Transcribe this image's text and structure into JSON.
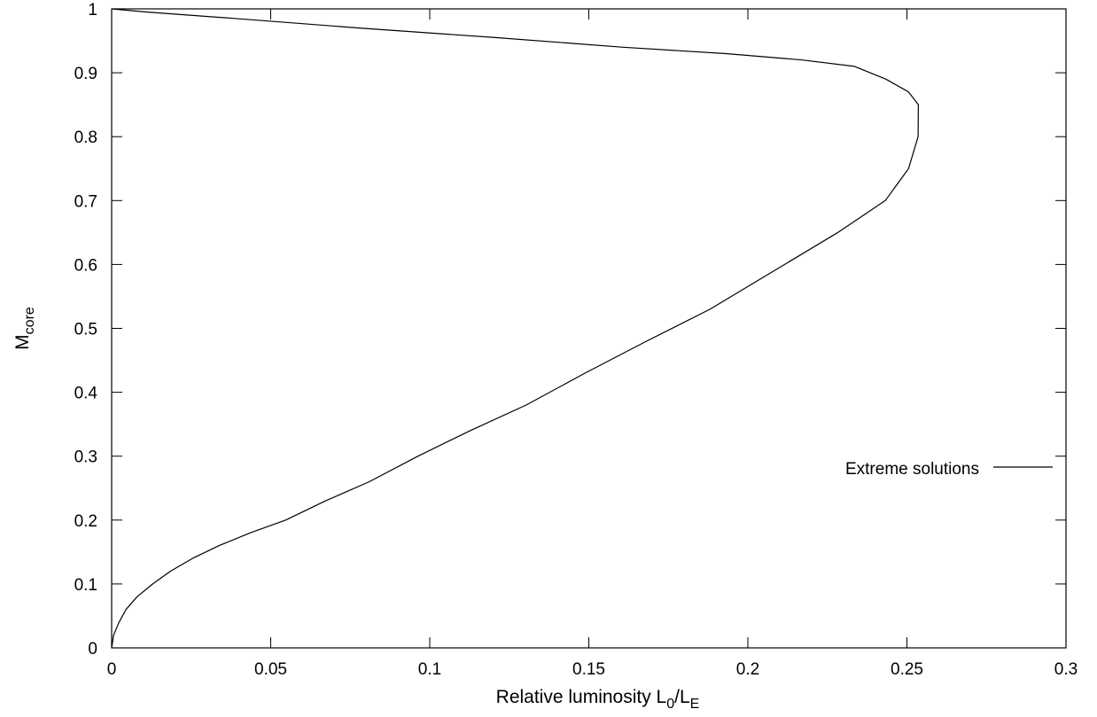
{
  "chart_data": {
    "type": "line",
    "xlabel_main": "Relative luminosity L",
    "xlabel_sub1": "0",
    "xlabel_mid": "/L",
    "xlabel_sub2": "E",
    "ylabel_main": "M",
    "ylabel_sub": "core",
    "xlim": [
      0,
      0.3
    ],
    "ylim": [
      0,
      1
    ],
    "x_ticks": [
      0,
      0.05,
      0.1,
      0.15,
      0.2,
      0.25,
      0.3
    ],
    "x_tick_labels": [
      "0",
      "0.05",
      "0.1",
      "0.15",
      "0.2",
      "0.25",
      "0.3"
    ],
    "y_ticks": [
      0,
      0.1,
      0.2,
      0.3,
      0.4,
      0.5,
      0.6,
      0.7,
      0.8,
      0.9,
      1
    ],
    "y_tick_labels": [
      "0",
      "0.1",
      "0.2",
      "0.3",
      "0.4",
      "0.5",
      "0.6",
      "0.7",
      "0.8",
      "0.9",
      "1"
    ],
    "grid": false,
    "legend_position": "right",
    "series": [
      {
        "name": "Extreme solutions",
        "color": "#000000",
        "x": [
          0,
          0.0006,
          0.0023,
          0.0045,
          0.008,
          0.0129,
          0.0185,
          0.0254,
          0.0338,
          0.0436,
          0.0547,
          0.0672,
          0.081,
          0.0963,
          0.1127,
          0.1303,
          0.1488,
          0.1682,
          0.1881,
          0.2082,
          0.2283,
          0.2432,
          0.2505,
          0.2535,
          0.2536,
          0.2505,
          0.2434,
          0.2335,
          0.2171,
          0.1931,
          0.1608,
          0.1207,
          0.0778,
          0.0386,
          0.0112,
          0
        ],
        "y": [
          0,
          0.02,
          0.04,
          0.06,
          0.08,
          0.1,
          0.12,
          0.14,
          0.16,
          0.18,
          0.2,
          0.23,
          0.26,
          0.3,
          0.34,
          0.38,
          0.43,
          0.48,
          0.53,
          0.59,
          0.65,
          0.7,
          0.75,
          0.8,
          0.85,
          0.87,
          0.89,
          0.91,
          0.92,
          0.93,
          0.94,
          0.955,
          0.97,
          0.985,
          0.995,
          1
        ]
      }
    ]
  }
}
